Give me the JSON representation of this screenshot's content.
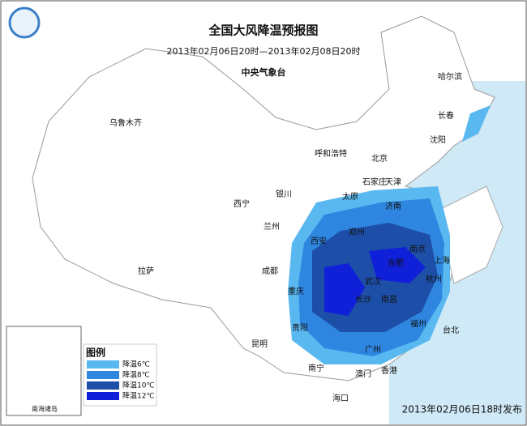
{
  "header": {
    "title": "全国大风降温预报图",
    "period": "2013年02月06日20时—2013年02月08日20时",
    "issuer": "中央气象台"
  },
  "cities": [
    "乌鲁木齐",
    "哈尔滨",
    "长春",
    "沈阳",
    "呼和浩特",
    "北京",
    "石家庄",
    "天津",
    "银川",
    "太原",
    "济南",
    "西宁",
    "兰州",
    "郑州",
    "西安",
    "拉萨",
    "成都",
    "南京",
    "合肥",
    "上海",
    "武汉",
    "杭州",
    "长沙",
    "南昌",
    "重庆",
    "贵阳",
    "福州",
    "台北",
    "昆明",
    "南宁",
    "广州",
    "香港",
    "澳门",
    "海口"
  ],
  "legend": {
    "title": "图例",
    "items": [
      {
        "label": "降温6℃",
        "color": "#5ab8f0"
      },
      {
        "label": "降温8℃",
        "color": "#2f86e0"
      },
      {
        "label": "降温10℃",
        "color": "#1d4fa8"
      },
      {
        "label": "降温12℃",
        "color": "#1020d8"
      }
    ]
  },
  "inset": {
    "label": "南海诸岛"
  },
  "footer": {
    "release": "2013年02月06日18时发布"
  }
}
